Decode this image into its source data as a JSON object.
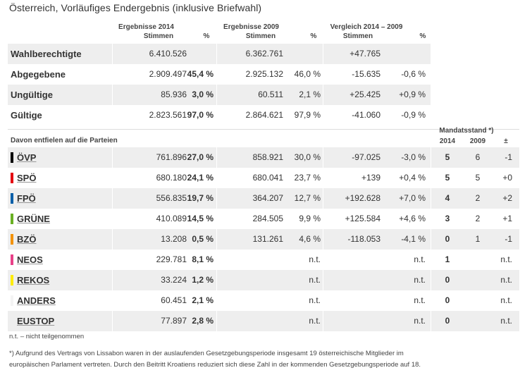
{
  "title": "Österreich, Vorläufiges Endergebnis (inklusive Briefwahl)",
  "headers": {
    "res2014": "Ergebnisse 2014",
    "res2009": "Ergebnisse 2009",
    "compare": "Vergleich 2014 – 2009",
    "stimmen": "Stimmen",
    "pct": "%",
    "parties_label": "Davon entfielen auf die Parteien",
    "mandate": "Mandatsstand *)",
    "m2014": "2014",
    "m2009": "2009",
    "mdiff": "±"
  },
  "summary": [
    {
      "label": "Wahlberechtigte",
      "v14": "6.410.526",
      "p14": "",
      "v09": "6.362.761",
      "p09": "",
      "dv": "+47.765",
      "dp": ""
    },
    {
      "label": "Abgegebene",
      "v14": "2.909.497",
      "p14": "45,4 %",
      "v09": "2.925.132",
      "p09": "46,0 %",
      "dv": "-15.635",
      "dp": "-0,6 %"
    },
    {
      "label": "Ungültige",
      "v14": "85.936",
      "p14": "3,0 %",
      "v09": "60.511",
      "p09": "2,1 %",
      "dv": "+25.425",
      "dp": "+0,9 %"
    },
    {
      "label": "Gültige",
      "v14": "2.823.561",
      "p14": "97,0 %",
      "v09": "2.864.621",
      "p09": "97,9 %",
      "dv": "-41.060",
      "dp": "-0,9 %"
    }
  ],
  "parties": [
    {
      "name": "ÖVP",
      "color": "#000000",
      "v14": "761.896",
      "p14": "27,0 %",
      "v09": "858.921",
      "p09": "30,0 %",
      "dv": "-97.025",
      "dp": "-3,0 %",
      "m14": "5",
      "m09": "6",
      "md": "-1"
    },
    {
      "name": "SPÖ",
      "color": "#e3000f",
      "v14": "680.180",
      "p14": "24,1 %",
      "v09": "680.041",
      "p09": "23,7 %",
      "dv": "+139",
      "dp": "+0,4 %",
      "m14": "5",
      "m09": "5",
      "md": "+0"
    },
    {
      "name": "FPÖ",
      "color": "#005ea8",
      "v14": "556.835",
      "p14": "19,7 %",
      "v09": "364.207",
      "p09": "12,7 %",
      "dv": "+192.628",
      "dp": "+7,0 %",
      "m14": "4",
      "m09": "2",
      "md": "+2"
    },
    {
      "name": "GRÜNE",
      "color": "#6ab023",
      "v14": "410.089",
      "p14": "14,5 %",
      "v09": "284.505",
      "p09": "9,9 %",
      "dv": "+125.584",
      "dp": "+4,6 %",
      "m14": "3",
      "m09": "2",
      "md": "+1"
    },
    {
      "name": "BZÖ",
      "color": "#f39200",
      "v14": "13.208",
      "p14": "0,5 %",
      "v09": "131.261",
      "p09": "4,6 %",
      "dv": "-118.053",
      "dp": "-4,1 %",
      "m14": "0",
      "m09": "1",
      "md": "-1"
    },
    {
      "name": "NEOS",
      "color": "#e84188",
      "v14": "229.781",
      "p14": "8,1 %",
      "v09": "",
      "p09": "n.t.",
      "dv": "",
      "dp": "n.t.",
      "m14": "1",
      "m09": "",
      "md": "n.t."
    },
    {
      "name": "REKOS",
      "color": "#ffec00",
      "v14": "33.224",
      "p14": "1,2 %",
      "v09": "",
      "p09": "n.t.",
      "dv": "",
      "dp": "n.t.",
      "m14": "0",
      "m09": "",
      "md": "n.t."
    },
    {
      "name": "ANDERS",
      "color": "#f4f4f4",
      "v14": "60.451",
      "p14": "2,1 %",
      "v09": "",
      "p09": "n.t.",
      "dv": "",
      "dp": "n.t.",
      "m14": "0",
      "m09": "",
      "md": "n.t."
    },
    {
      "name": "EUSTOP",
      "color": "#eeeeee",
      "v14": "77.897",
      "p14": "2,8 %",
      "v09": "",
      "p09": "n.t.",
      "dv": "",
      "dp": "n.t.",
      "m14": "0",
      "m09": "",
      "md": "n.t."
    }
  ],
  "footnote_nt": "n.t. – nicht teilgenommen",
  "footnote_1": "*) Aufgrund des Vertrags von Lissabon waren in der auslaufenden Gesetzgebungsperiode insgesamt 19 österreichische Mitglieder im",
  "footnote_2": "europäischen Parlament vertreten. Durch den Beitritt Kroatiens reduziert sich diese Zahl in der kommenden Gesetzgebungsperiode auf 18."
}
